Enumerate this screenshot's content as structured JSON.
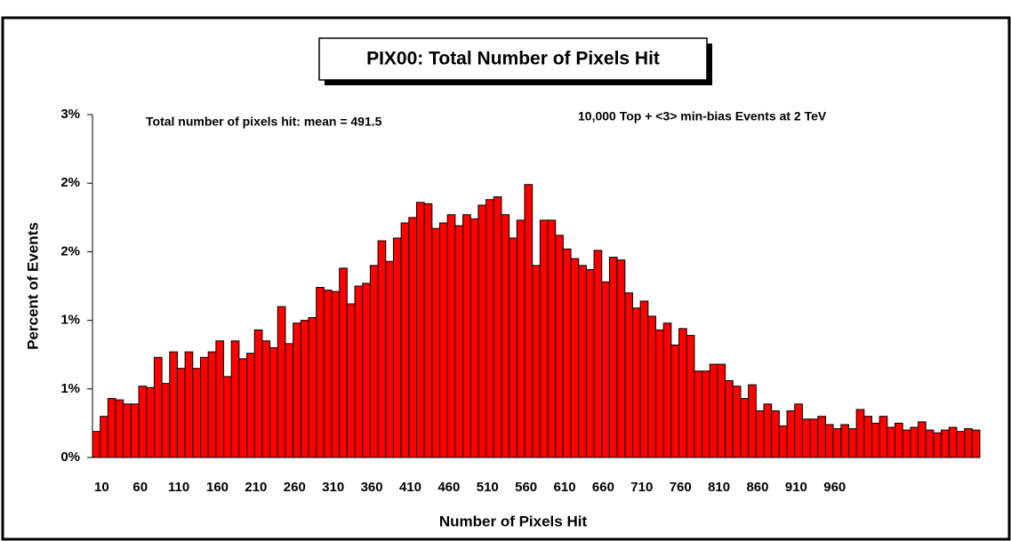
{
  "chart_data": {
    "type": "bar",
    "title": "PIX00: Total Number of Pixels Hit",
    "annotations": [
      "Total number of pixels hit: mean = 491.5",
      "10,000 Top + <3> min-bias Events at 2 TeV"
    ],
    "xlabel": "Number of Pixels Hit",
    "ylabel": "Percent of Events",
    "color": "#ff0000",
    "categories": [
      "10",
      null,
      null,
      null,
      null,
      "60",
      null,
      null,
      null,
      null,
      "110",
      null,
      null,
      null,
      null,
      "160",
      null,
      null,
      null,
      null,
      "210",
      null,
      null,
      null,
      null,
      "260",
      null,
      null,
      null,
      null,
      "310",
      null,
      null,
      null,
      null,
      "360",
      null,
      null,
      null,
      null,
      "410",
      null,
      null,
      null,
      null,
      "460",
      null,
      null,
      null,
      null,
      "510",
      null,
      null,
      null,
      null,
      "560",
      null,
      null,
      null,
      null,
      "610",
      null,
      null,
      null,
      null,
      "660",
      null,
      null,
      null,
      null,
      "710",
      null,
      null,
      null,
      null,
      "760",
      null,
      null,
      null,
      null,
      "810",
      null,
      null,
      null,
      null,
      "860",
      null,
      null,
      null,
      null,
      "910",
      null,
      null,
      null,
      null,
      "960",
      null,
      null,
      null,
      null,
      null,
      null,
      null,
      null,
      null,
      null,
      null,
      null,
      null,
      null,
      null,
      null,
      null,
      null,
      null
    ],
    "values": [
      0.19,
      0.3,
      0.43,
      0.42,
      0.39,
      0.39,
      0.52,
      0.51,
      0.73,
      0.54,
      0.77,
      0.65,
      0.77,
      0.65,
      0.73,
      0.77,
      0.85,
      0.59,
      0.85,
      0.72,
      0.76,
      0.93,
      0.85,
      0.8,
      1.1,
      0.83,
      0.98,
      1.0,
      1.02,
      1.24,
      1.22,
      1.21,
      1.38,
      1.12,
      1.25,
      1.27,
      1.4,
      1.58,
      1.43,
      1.6,
      1.71,
      1.75,
      1.86,
      1.85,
      1.67,
      1.71,
      1.77,
      1.69,
      1.77,
      1.74,
      1.84,
      1.88,
      1.9,
      1.77,
      1.6,
      1.73,
      1.99,
      1.4,
      1.73,
      1.73,
      1.62,
      1.52,
      1.45,
      1.4,
      1.37,
      1.51,
      1.28,
      1.46,
      1.44,
      1.2,
      1.09,
      1.14,
      1.03,
      0.93,
      0.98,
      0.82,
      0.94,
      0.89,
      0.63,
      0.63,
      0.68,
      0.68,
      0.56,
      0.52,
      0.43,
      0.53,
      0.34,
      0.39,
      0.34,
      0.23,
      0.34,
      0.39,
      0.28,
      0.28,
      0.3,
      0.24,
      0.21,
      0.24,
      0.21,
      0.35,
      0.3,
      0.25,
      0.3,
      0.22,
      0.25,
      0.2,
      0.22,
      0.26,
      0.2,
      0.18,
      0.2,
      0.22,
      0.19,
      0.21,
      0.2
    ],
    "ylim": [
      0,
      2.5
    ],
    "yticks": [
      {
        "value": 0,
        "label": "0%"
      },
      {
        "value": 0.5,
        "label": "1%"
      },
      {
        "value": 1,
        "label": "1%"
      },
      {
        "value": 1.5,
        "label": "2%"
      },
      {
        "value": 2,
        "label": "2%"
      },
      {
        "value": 2.5,
        "label": "3%"
      }
    ]
  }
}
